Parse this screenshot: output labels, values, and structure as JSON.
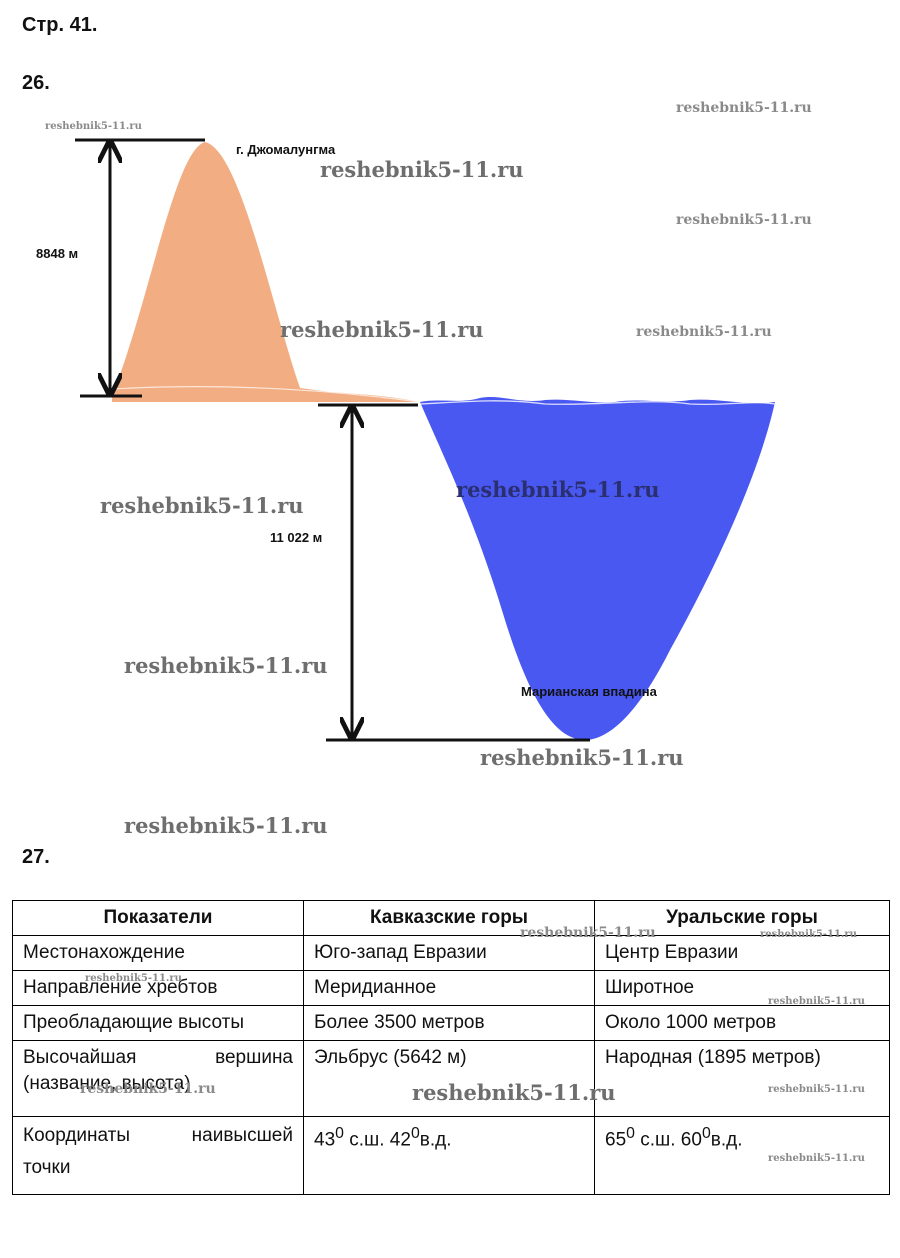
{
  "page_label": "Стр. 41.",
  "task26": {
    "number": "26.",
    "peak_label": "г. Джомалунгма",
    "height_label": "8848 м",
    "depth_label": "11 022 м",
    "trench_label": "Марианская впадина"
  },
  "task27": {
    "number": "27.",
    "headers": [
      "Показатели",
      "Кавказские горы",
      "Уральские горы"
    ],
    "rows": [
      {
        "indicator": "Местонахождение",
        "caucasus": "Юго-запад Евразии",
        "urals": "Центр Евразии"
      },
      {
        "indicator": "Направление хребтов",
        "caucasus": "Меридианное",
        "urals": "Широтное"
      },
      {
        "indicator": "Преобладающие высоты",
        "caucasus": "Более 3500 метров",
        "urals": "Около 1000 метров"
      },
      {
        "indicator_line1": "Высочайшая вершина",
        "indicator_line2": "(название, высота)",
        "caucasus": "Эльбрус (5642 м)",
        "urals": "Народная (1895 метров)"
      },
      {
        "indicator_line1": "Координаты наивысшей",
        "indicator_line2": "точки",
        "caucasus": {
          "a": "43",
          "sa": "0",
          "b": " с.ш. 42",
          "sb": "0",
          "c": "в.д."
        },
        "urals": {
          "a": "65",
          "sa": "0",
          "b": " с.ш. 60",
          "sb": "0",
          "c": "в.д."
        }
      }
    ]
  },
  "watermark": "reshebnik5-11.ru",
  "colors": {
    "mountain": "#f2ad83",
    "ocean": "#4a58f2",
    "ink": "#111111"
  }
}
